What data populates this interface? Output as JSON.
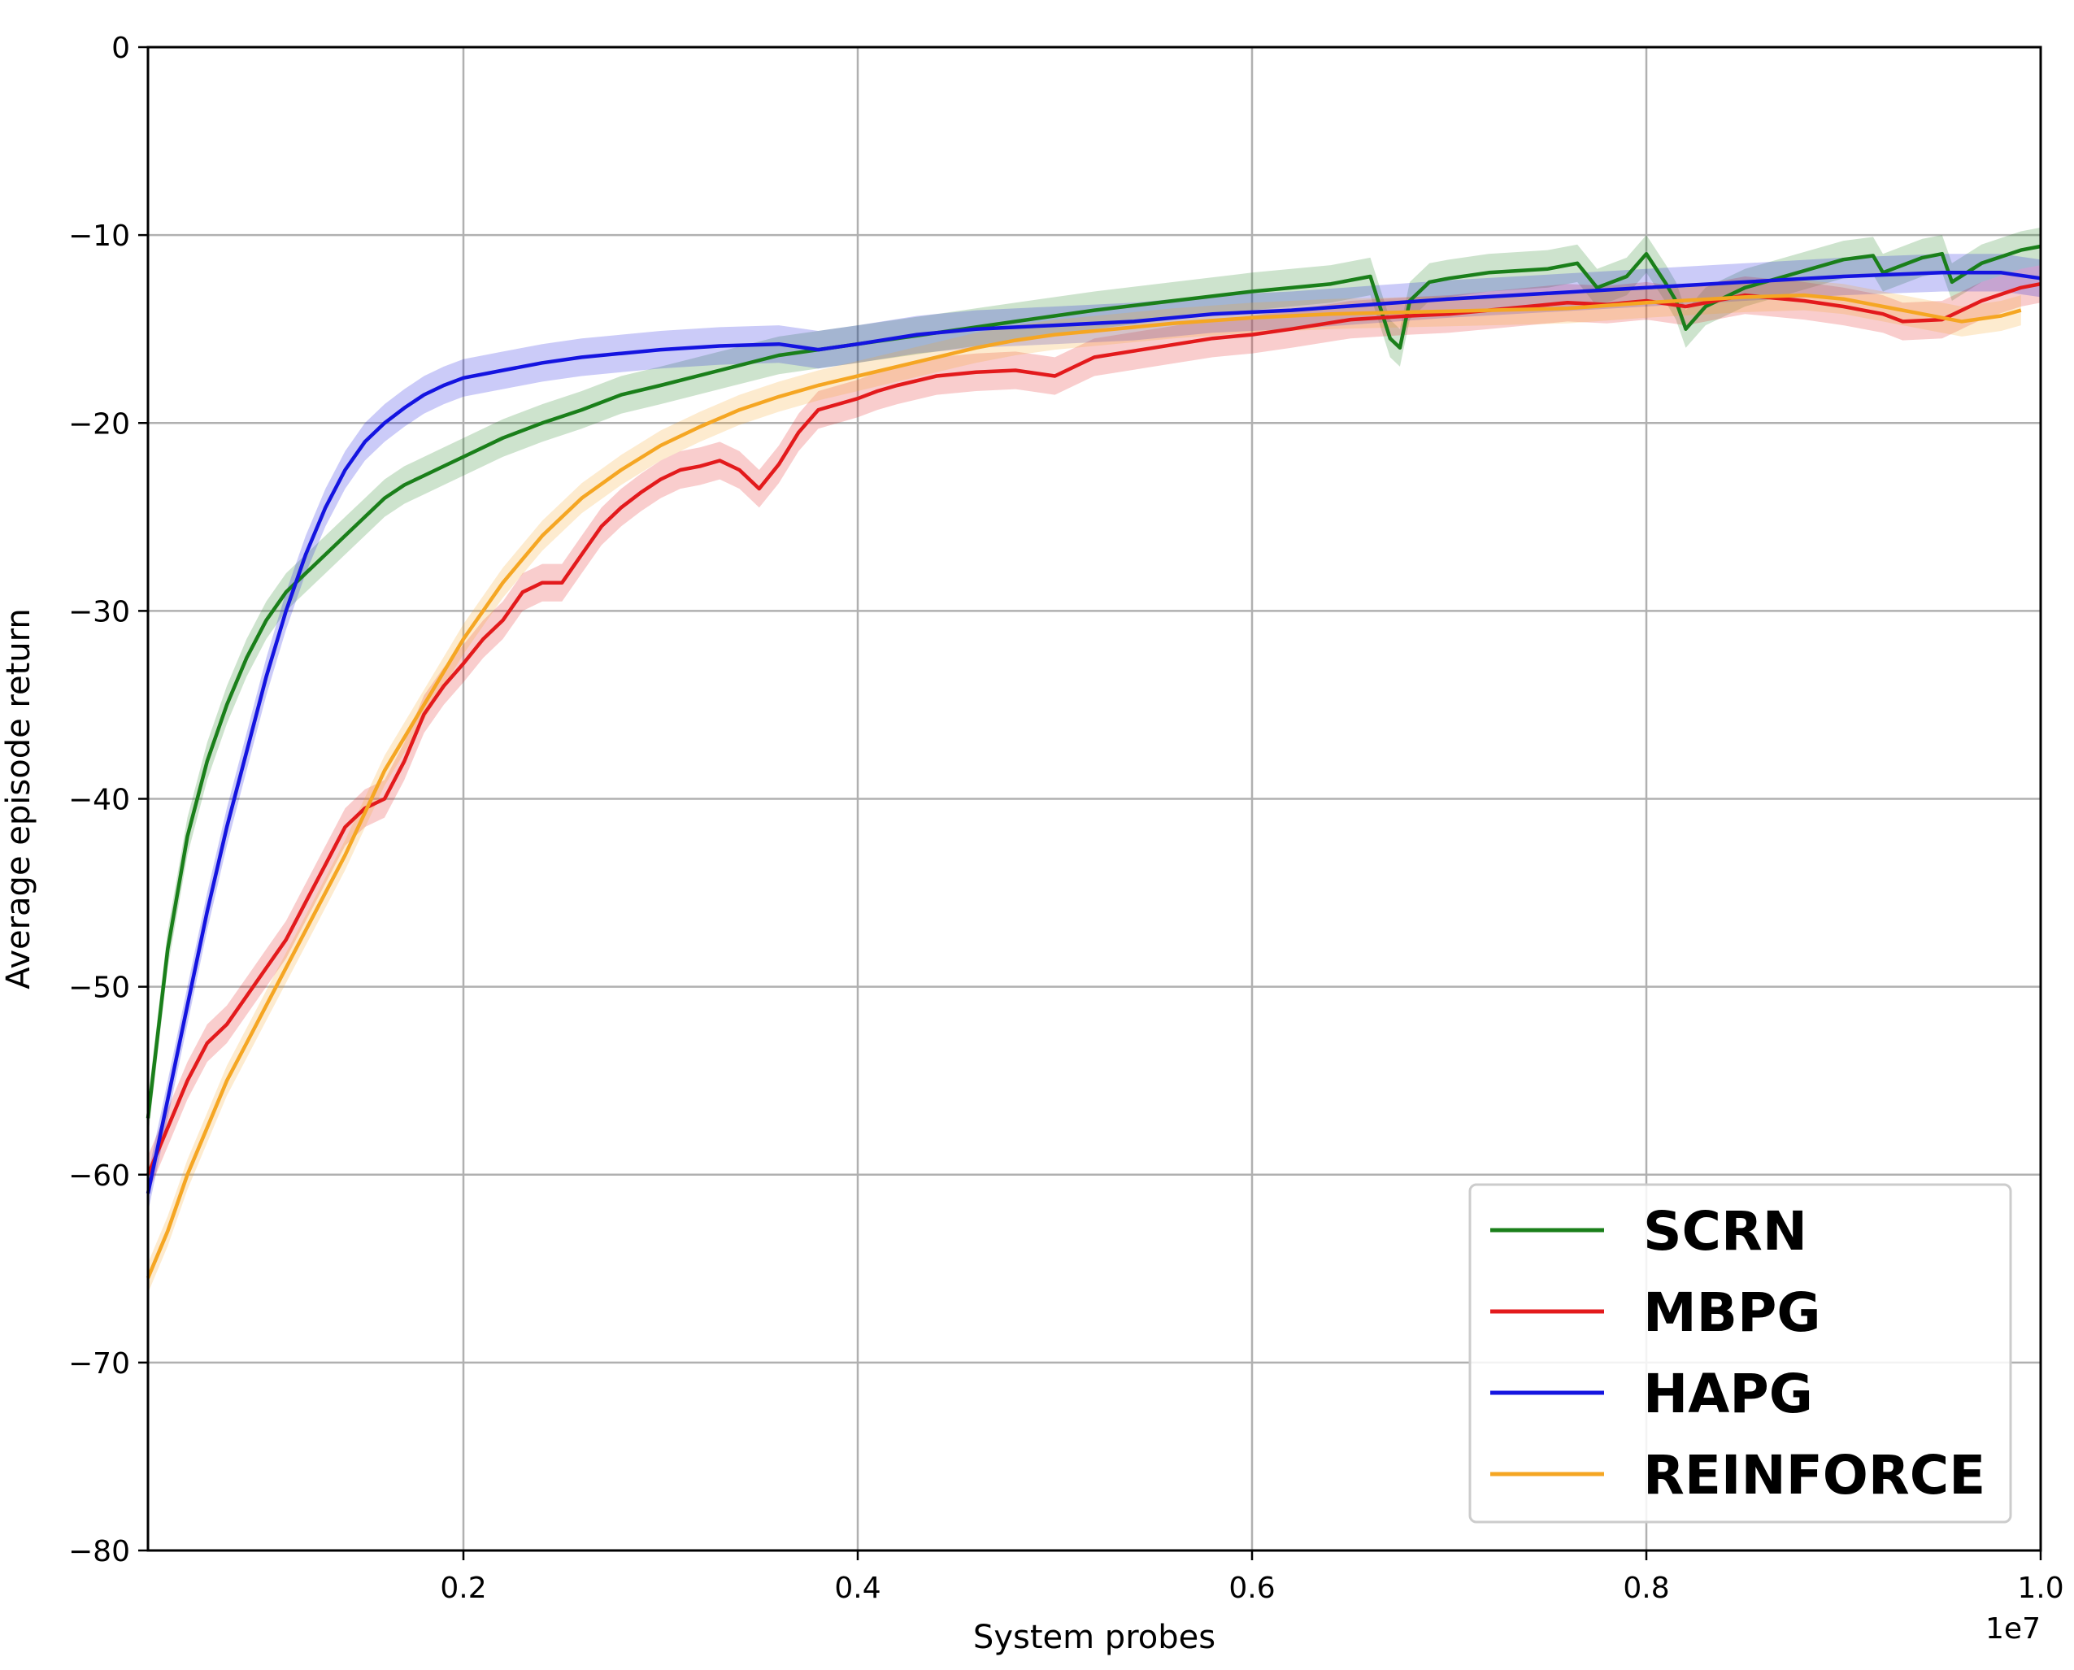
{
  "chart_data": {
    "type": "line",
    "title": "",
    "xlabel": "System probes",
    "ylabel": "Average episode return",
    "x_offset_label": "1e7",
    "xlim": [
      0.04,
      1.0
    ],
    "ylim": [
      -80,
      0
    ],
    "x_ticks": [
      0.2,
      0.4,
      0.6,
      0.8,
      1.0
    ],
    "x_tick_labels": [
      "0.2",
      "0.4",
      "0.6",
      "0.8",
      "1.0"
    ],
    "y_ticks": [
      0,
      -10,
      -20,
      -30,
      -40,
      -50,
      -60,
      -70,
      -80
    ],
    "y_tick_labels": [
      "0",
      "−10",
      "−20",
      "−30",
      "−40",
      "−50",
      "−60",
      "−70",
      "−80"
    ],
    "grid": true,
    "shaded_band": true,
    "legend_position": "bottom-right",
    "series": [
      {
        "name": "SCRN",
        "color": "#1a7f1a",
        "band": 1.0,
        "x": [
          0.04,
          0.05,
          0.06,
          0.07,
          0.08,
          0.09,
          0.1,
          0.11,
          0.12,
          0.13,
          0.14,
          0.15,
          0.16,
          0.17,
          0.18,
          0.19,
          0.2,
          0.22,
          0.24,
          0.26,
          0.28,
          0.3,
          0.33,
          0.36,
          0.4,
          0.44,
          0.48,
          0.52,
          0.56,
          0.6,
          0.64,
          0.66,
          0.67,
          0.675,
          0.68,
          0.69,
          0.7,
          0.72,
          0.75,
          0.765,
          0.775,
          0.79,
          0.8,
          0.81,
          0.815,
          0.82,
          0.83,
          0.85,
          0.87,
          0.9,
          0.915,
          0.92,
          0.94,
          0.95,
          0.955,
          0.97,
          0.99,
          1.0
        ],
        "y": [
          -57,
          -48,
          -42,
          -38,
          -35,
          -32.5,
          -30.5,
          -29,
          -28,
          -27,
          -26,
          -25,
          -24,
          -23.3,
          -22.8,
          -22.3,
          -21.8,
          -20.8,
          -20,
          -19.3,
          -18.5,
          -18,
          -17.2,
          -16.4,
          -15.8,
          -15.2,
          -14.6,
          -14,
          -13.5,
          -13,
          -12.6,
          -12.2,
          -15.5,
          -16,
          -13.5,
          -12.5,
          -12.3,
          -12,
          -11.8,
          -11.5,
          -12.8,
          -12.2,
          -11,
          -12.6,
          -13.5,
          -15,
          -13.8,
          -12.8,
          -12.2,
          -11.3,
          -11.1,
          -12,
          -11.2,
          -11,
          -12.5,
          -11.5,
          -10.8,
          -10.6
        ]
      },
      {
        "name": "MBPG",
        "color": "#e31a1c",
        "band": 1.0,
        "x": [
          0.04,
          0.05,
          0.06,
          0.07,
          0.08,
          0.09,
          0.1,
          0.11,
          0.12,
          0.13,
          0.14,
          0.15,
          0.16,
          0.17,
          0.18,
          0.19,
          0.2,
          0.21,
          0.22,
          0.23,
          0.24,
          0.25,
          0.26,
          0.27,
          0.28,
          0.29,
          0.3,
          0.31,
          0.32,
          0.33,
          0.34,
          0.35,
          0.36,
          0.37,
          0.38,
          0.39,
          0.4,
          0.41,
          0.42,
          0.44,
          0.46,
          0.48,
          0.5,
          0.51,
          0.52,
          0.55,
          0.58,
          0.6,
          0.62,
          0.65,
          0.68,
          0.7,
          0.72,
          0.74,
          0.76,
          0.78,
          0.8,
          0.82,
          0.85,
          0.88,
          0.9,
          0.92,
          0.93,
          0.95,
          0.97,
          0.99,
          1.0
        ],
        "y": [
          -60,
          -57.5,
          -55,
          -53,
          -52,
          -50.5,
          -49,
          -47.5,
          -45.5,
          -43.5,
          -41.5,
          -40.5,
          -40,
          -38,
          -35.5,
          -34,
          -32.8,
          -31.5,
          -30.5,
          -29,
          -28.5,
          -28.5,
          -27,
          -25.5,
          -24.5,
          -23.7,
          -23,
          -22.5,
          -22.3,
          -22,
          -22.5,
          -23.5,
          -22.2,
          -20.5,
          -19.3,
          -19,
          -18.7,
          -18.3,
          -18,
          -17.5,
          -17.3,
          -17.2,
          -17.5,
          -17,
          -16.5,
          -16,
          -15.5,
          -15.3,
          -15,
          -14.5,
          -14.3,
          -14.2,
          -14,
          -13.8,
          -13.6,
          -13.7,
          -13.5,
          -13.8,
          -13.2,
          -13.5,
          -13.8,
          -14.2,
          -14.6,
          -14.5,
          -13.5,
          -12.8,
          -12.6
        ]
      },
      {
        "name": "HAPG",
        "color": "#1414e0",
        "band": 1.0,
        "x": [
          0.04,
          0.05,
          0.06,
          0.07,
          0.08,
          0.09,
          0.1,
          0.11,
          0.12,
          0.13,
          0.14,
          0.15,
          0.16,
          0.17,
          0.18,
          0.19,
          0.2,
          0.22,
          0.24,
          0.26,
          0.28,
          0.3,
          0.33,
          0.36,
          0.38,
          0.4,
          0.43,
          0.46,
          0.5,
          0.54,
          0.58,
          0.62,
          0.66,
          0.7,
          0.75,
          0.8,
          0.85,
          0.9,
          0.95,
          0.98,
          1.0
        ],
        "y": [
          -61,
          -56,
          -51,
          -46,
          -41.5,
          -37.5,
          -33.5,
          -30,
          -27,
          -24.5,
          -22.5,
          -21,
          -20,
          -19.2,
          -18.5,
          -18,
          -17.6,
          -17.2,
          -16.8,
          -16.5,
          -16.3,
          -16.1,
          -15.9,
          -15.8,
          -16.1,
          -15.8,
          -15.3,
          -15,
          -14.8,
          -14.6,
          -14.2,
          -14,
          -13.7,
          -13.4,
          -13.1,
          -12.8,
          -12.5,
          -12.2,
          -12,
          -12,
          -12.3
        ]
      },
      {
        "name": "REINFORCE",
        "color": "#f5a623",
        "band": 0.8,
        "x": [
          0.04,
          0.05,
          0.06,
          0.07,
          0.08,
          0.09,
          0.1,
          0.12,
          0.14,
          0.16,
          0.18,
          0.2,
          0.22,
          0.24,
          0.26,
          0.28,
          0.3,
          0.32,
          0.34,
          0.36,
          0.38,
          0.4,
          0.42,
          0.44,
          0.46,
          0.48,
          0.5,
          0.53,
          0.56,
          0.6,
          0.64,
          0.68,
          0.72,
          0.76,
          0.8,
          0.85,
          0.88,
          0.9,
          0.92,
          0.94,
          0.96,
          0.98,
          0.99
        ],
        "y": [
          -65.5,
          -63,
          -60,
          -57.5,
          -55,
          -53,
          -51,
          -47,
          -43,
          -38.5,
          -35,
          -31.5,
          -28.5,
          -26,
          -24,
          -22.5,
          -21.2,
          -20.2,
          -19.3,
          -18.6,
          -18,
          -17.5,
          -17,
          -16.5,
          -16,
          -15.6,
          -15.3,
          -15,
          -14.7,
          -14.4,
          -14.2,
          -14.1,
          -14,
          -13.9,
          -13.6,
          -13.3,
          -13.2,
          -13.4,
          -13.8,
          -14.2,
          -14.6,
          -14.3,
          -14
        ]
      }
    ]
  }
}
